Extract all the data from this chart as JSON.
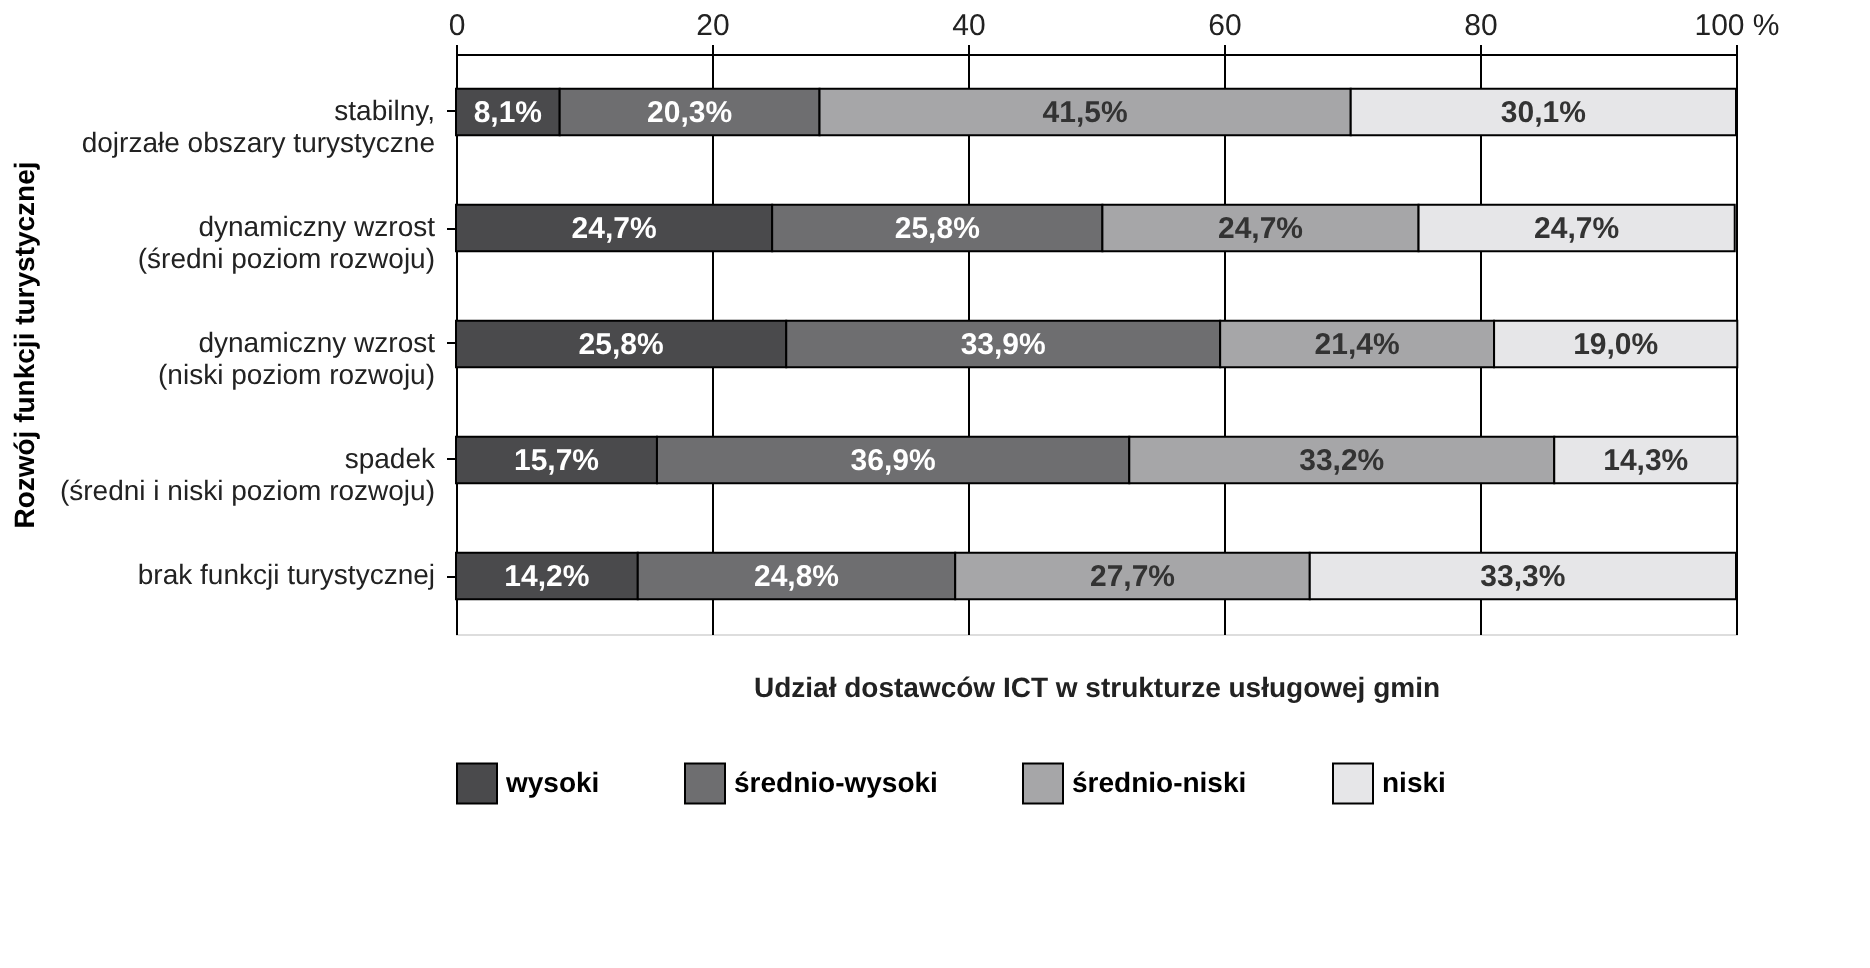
{
  "chart_data": {
    "type": "bar",
    "orientation": "horizontal",
    "stacked": true,
    "xlabel": "Udział dostawców ICT w strukturze usługowej gmin",
    "ylabel": "Rozwój funkcji turystycznej",
    "categories": [
      "stabilny,\ndojrzałe obszary turystyczne",
      "dynamiczny wzrost\n(średni poziom rozwoju)",
      "dynamiczny wzrost\n(niski poziom rozwoju)",
      "spadek\n(średni i niski poziom rozwoju)",
      "brak funkcji turystycznej"
    ],
    "series": [
      {
        "name": "wysoki",
        "color": "#4a4a4c",
        "values": [
          8.1,
          24.7,
          25.8,
          15.7,
          14.2
        ],
        "value_labels": [
          "8,1%",
          "24,7%",
          "25,8%",
          "15,7%",
          "14,2%"
        ]
      },
      {
        "name": "średnio-wysoki",
        "color": "#6e6e70",
        "values": [
          20.3,
          25.8,
          33.9,
          36.9,
          24.8
        ],
        "value_labels": [
          "20,3%",
          "25,8%",
          "33,9%",
          "36,9%",
          "24,8%"
        ]
      },
      {
        "name": "średnio-niski",
        "color": "#a6a6a8",
        "values": [
          41.5,
          24.7,
          21.4,
          33.2,
          27.7
        ],
        "value_labels": [
          "41,5%",
          "24,7%",
          "21,4%",
          "33,2%",
          "27,7%"
        ]
      },
      {
        "name": "niski",
        "color": "#e6e6e8",
        "values": [
          30.1,
          24.7,
          19.0,
          14.3,
          33.3
        ],
        "value_labels": [
          "30,1%",
          "24,7%",
          "19,0%",
          "14,3%",
          "33,3%"
        ]
      }
    ],
    "xlim": [
      0,
      100
    ],
    "xticks": [
      0,
      20,
      40,
      60,
      80,
      {
        "value": 100,
        "label": "100 %"
      }
    ],
    "grid": "x",
    "legend": "bottom"
  }
}
